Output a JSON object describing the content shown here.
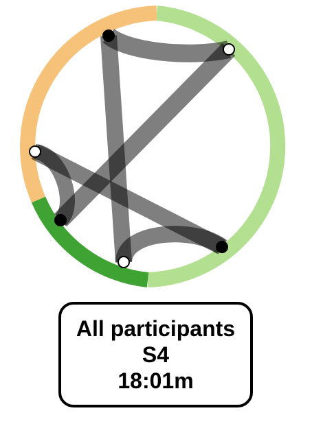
{
  "ring": {
    "segments": [
      {
        "name": "light-green",
        "color": "#b3e090"
      },
      {
        "name": "dark-green",
        "color": "#3ea332"
      },
      {
        "name": "orange",
        "color": "#f6c27a"
      }
    ]
  },
  "chord_color": "#000000",
  "nodes": [
    {
      "name": "node-top",
      "fill": "black"
    },
    {
      "name": "node-top-right",
      "fill": "white"
    },
    {
      "name": "node-left",
      "fill": "white"
    },
    {
      "name": "node-lower-left",
      "fill": "black"
    },
    {
      "name": "node-bottom",
      "fill": "white"
    },
    {
      "name": "node-lower-right",
      "fill": "black"
    }
  ],
  "info": {
    "line1": "All participants",
    "line2": "S4",
    "line3": "18:01m"
  }
}
